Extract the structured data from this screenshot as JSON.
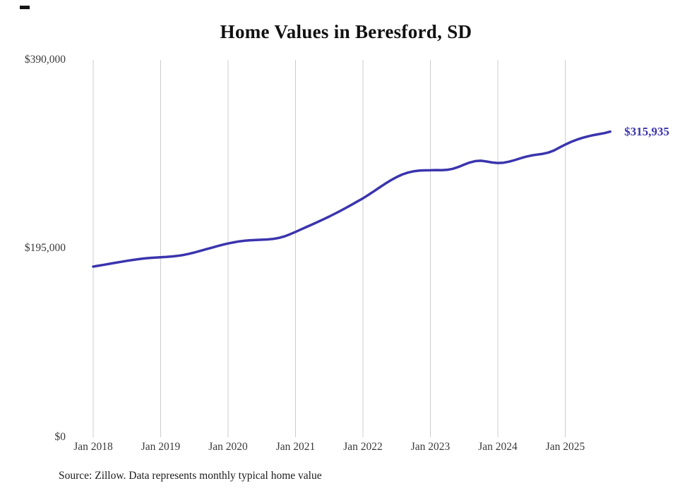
{
  "page": {
    "end_label": "$315,935",
    "source_note": "Source: Zillow. Data represents monthly typical home value"
  },
  "chart_data": {
    "type": "line",
    "title": "Home Values in Beresford, SD",
    "series_name": "Monthly typical home value",
    "xlabel": "",
    "ylabel": "",
    "ylim": [
      0,
      390000
    ],
    "y_tick_labels": [
      "$0",
      "$195,000",
      "$390,000"
    ],
    "x_tick_labels": [
      "Jan 2018",
      "Jan 2019",
      "Jan 2020",
      "Jan 2021",
      "Jan 2022",
      "Jan 2023",
      "Jan 2024",
      "Jan 2025"
    ],
    "grid": "vertical-only",
    "legend": "none",
    "line_color": "#3a34ad",
    "grid_color": "#cccccc",
    "latest_value_label": "$315,935",
    "x": [
      "2018-01",
      "2018-02",
      "2018-03",
      "2018-04",
      "2018-05",
      "2018-06",
      "2018-07",
      "2018-08",
      "2018-09",
      "2018-10",
      "2018-11",
      "2018-12",
      "2019-01",
      "2019-02",
      "2019-03",
      "2019-04",
      "2019-05",
      "2019-06",
      "2019-07",
      "2019-08",
      "2019-09",
      "2019-10",
      "2019-11",
      "2019-12",
      "2020-01",
      "2020-02",
      "2020-03",
      "2020-04",
      "2020-05",
      "2020-06",
      "2020-07",
      "2020-08",
      "2020-09",
      "2020-10",
      "2020-11",
      "2020-12",
      "2021-01",
      "2021-02",
      "2021-03",
      "2021-04",
      "2021-05",
      "2021-06",
      "2021-07",
      "2021-08",
      "2021-09",
      "2021-10",
      "2021-11",
      "2021-12",
      "2022-01",
      "2022-02",
      "2022-03",
      "2022-04",
      "2022-05",
      "2022-06",
      "2022-07",
      "2022-08",
      "2022-09",
      "2022-10",
      "2022-11",
      "2022-12",
      "2023-01",
      "2023-02",
      "2023-03",
      "2023-04",
      "2023-05",
      "2023-06",
      "2023-07",
      "2023-08",
      "2023-09",
      "2023-10",
      "2023-11",
      "2023-12",
      "2024-01",
      "2024-02",
      "2024-03",
      "2024-04",
      "2024-05",
      "2024-06",
      "2024-07",
      "2024-08",
      "2024-09",
      "2024-10",
      "2024-11",
      "2024-12",
      "2025-01",
      "2025-02",
      "2025-03",
      "2025-04",
      "2025-05",
      "2025-06",
      "2025-07",
      "2025-08",
      "2025-09"
    ],
    "values": [
      176400,
      177400,
      178400,
      179400,
      180400,
      181400,
      182400,
      183300,
      184100,
      184800,
      185300,
      185700,
      186000,
      186400,
      186900,
      187500,
      188400,
      189600,
      191000,
      192600,
      194200,
      195800,
      197400,
      198900,
      200300,
      201500,
      202500,
      203200,
      203700,
      204000,
      204200,
      204500,
      205000,
      206000,
      207600,
      209800,
      212300,
      214900,
      217500,
      220100,
      222700,
      225400,
      228200,
      231100,
      234100,
      237200,
      240400,
      243700,
      247000,
      250700,
      254500,
      258400,
      262200,
      265800,
      269000,
      271600,
      273600,
      274900,
      275600,
      275900,
      276000,
      276200,
      276100,
      276400,
      277500,
      279400,
      281800,
      284000,
      285500,
      285800,
      285000,
      284000,
      283500,
      283800,
      284900,
      286500,
      288300,
      290000,
      291300,
      292200,
      293000,
      294300,
      296500,
      299500,
      302500,
      305200,
      307500,
      309400,
      311000,
      312300,
      313400,
      314400,
      315935
    ]
  }
}
